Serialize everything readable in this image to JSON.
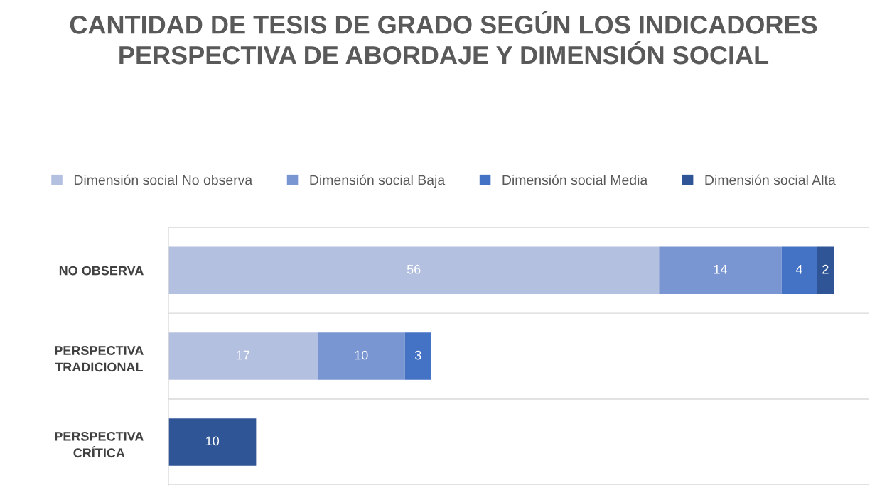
{
  "chart_data": {
    "type": "bar",
    "orientation": "horizontal",
    "stacked": true,
    "title": "CANTIDAD DE TESIS DE GRADO SEGÚN LOS INDICADORES PERSPECTIVA DE ABORDAJE Y DIMENSIÓN SOCIAL",
    "categories": [
      "NO OBSERVA",
      "PERSPECTIVA\nTRADICIONAL",
      "PERSPECTIVA\nCRÍTICA"
    ],
    "series": [
      {
        "name": "Dimensión social No observa",
        "color": "#b4c0e0",
        "values": [
          56,
          17,
          null
        ]
      },
      {
        "name": "Dimensión social Baja",
        "color": "#7a96d2",
        "values": [
          14,
          10,
          null
        ]
      },
      {
        "name": "Dimensión social Media",
        "color": "#4472c4",
        "values": [
          4,
          3,
          null
        ]
      },
      {
        "name": "Dimensión social Alta",
        "color": "#2f5597",
        "values": [
          2,
          null,
          10
        ]
      }
    ],
    "xlim": [
      0,
      80
    ],
    "data_labels": true,
    "grid": "y",
    "legend": "top",
    "tick_labels": "y"
  }
}
